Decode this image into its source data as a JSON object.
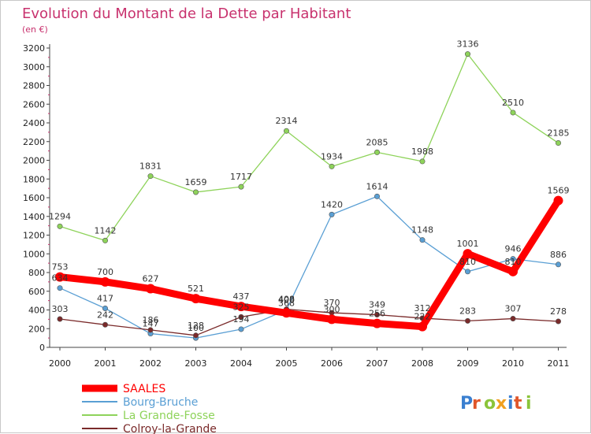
{
  "chart_data": {
    "type": "line",
    "title": "Evolution du Montant de la Dette par Habitant",
    "subtitle": "(en €)",
    "x": [
      "2000",
      "2001",
      "2002",
      "2003",
      "2004",
      "2005",
      "2006",
      "2007",
      "2008",
      "2009",
      "2010",
      "2011"
    ],
    "ylim": [
      0,
      3200
    ],
    "yticks": [
      0,
      200,
      400,
      600,
      800,
      1000,
      1200,
      1400,
      1600,
      1800,
      2000,
      2200,
      2400,
      2600,
      2800,
      3000,
      3200
    ],
    "grid": false,
    "legend_position": "bottom-left",
    "series": [
      {
        "name": "SAALES",
        "color": "#ff0000",
        "values": [
          753,
          700,
          627,
          521,
          437,
          368,
          300,
          256,
          222,
          1001,
          810,
          1569
        ]
      },
      {
        "name": "Bourg-Bruche",
        "color": "#5a9fd4",
        "values": [
          634,
          417,
          147,
          100,
          194,
          400,
          1420,
          1614,
          1148,
          810,
          946,
          886
        ]
      },
      {
        "name": "La Grande-Fosse",
        "color": "#8ed35a",
        "values": [
          1294,
          1142,
          1831,
          1659,
          1717,
          2314,
          1934,
          2085,
          1988,
          3136,
          2510,
          2185
        ]
      },
      {
        "name": "Colroy-la-Grande",
        "color": "#7a2a2a",
        "values": [
          303,
          242,
          186,
          128,
          325,
          408,
          370,
          349,
          312,
          283,
          307,
          278
        ]
      }
    ],
    "data_labels": [
      [
        "753",
        "700",
        "627",
        "521",
        "437",
        "368",
        "300",
        "256",
        "222",
        "1001",
        "810",
        "1569"
      ],
      [
        "634",
        "417",
        "147",
        "100",
        "194",
        "400",
        "1420",
        "1614",
        "1148",
        "810",
        "946",
        "886"
      ],
      [
        "1294",
        "1142",
        "1831",
        "1659",
        "1717",
        "2314",
        "1934",
        "2085",
        "1988",
        "3136",
        "2510",
        "2185"
      ],
      [
        "303",
        "242",
        "186",
        "128",
        "325",
        "408",
        "370",
        "349",
        "312",
        "283",
        "307",
        "278"
      ]
    ]
  },
  "logo": {
    "text": "Proxiti"
  }
}
